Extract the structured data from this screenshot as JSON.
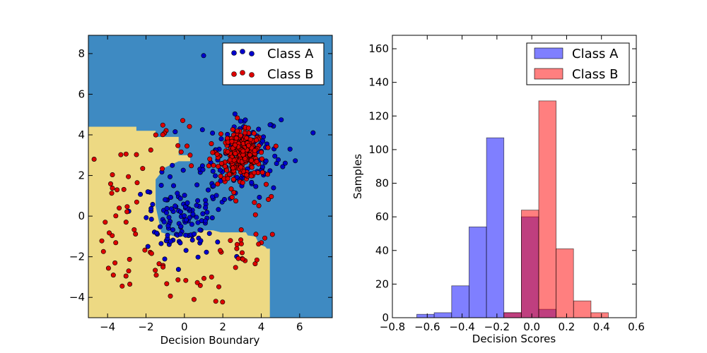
{
  "chart_data": [
    {
      "type": "scatter",
      "xlabel": "Decision Boundary",
      "ylabel": "",
      "xlim": [
        -5,
        7.7
      ],
      "ylim": [
        -5,
        8.9
      ],
      "xticks": [
        -4,
        -2,
        0,
        2,
        4,
        6
      ],
      "xtick_labels": [
        "−4",
        "−2",
        "0",
        "2",
        "4",
        "6"
      ],
      "yticks": [
        -4,
        -2,
        0,
        2,
        4,
        6,
        8
      ],
      "ytick_labels": [
        "−4",
        "−2",
        "0",
        "2",
        "4",
        "6",
        "8"
      ],
      "legend_position": "top-right",
      "background_colors": {
        "class_a_region": "#3E8AC2",
        "class_b_region": "#EDD983"
      },
      "decision_region_class_b": [
        [
          -5,
          4.4
        ],
        [
          -2.5,
          4.4
        ],
        [
          -2.5,
          4.2
        ],
        [
          -1.5,
          4.2
        ],
        [
          -1.5,
          3.9
        ],
        [
          -0.3,
          3.9
        ],
        [
          -0.3,
          3.0
        ],
        [
          0.3,
          3.0
        ],
        [
          0.3,
          2.7
        ],
        [
          -0.3,
          2.7
        ],
        [
          -1.0,
          2.4
        ],
        [
          -1.5,
          1.8
        ],
        [
          -1.5,
          0.5
        ],
        [
          -1.2,
          -0.8
        ],
        [
          -0.5,
          -1.0
        ],
        [
          0.5,
          -1.0
        ],
        [
          0.8,
          -0.7
        ],
        [
          1.5,
          -0.7
        ],
        [
          1.9,
          -0.8
        ],
        [
          3.2,
          -0.8
        ],
        [
          3.3,
          -0.95
        ],
        [
          3.7,
          -1.0
        ],
        [
          3.9,
          -1.4
        ],
        [
          4.2,
          -1.5
        ],
        [
          4.3,
          -1.6
        ],
        [
          4.45,
          -1.6
        ],
        [
          4.45,
          -5
        ],
        [
          -5,
          -5
        ]
      ],
      "decision_region_class_a_inner": [
        [
          1.2,
          4.2
        ],
        [
          4.0,
          4.2
        ],
        [
          4.2,
          3.4
        ],
        [
          4.2,
          1.9
        ],
        [
          3.8,
          1.3
        ],
        [
          3.3,
          0.6
        ],
        [
          2.7,
          0.2
        ],
        [
          2.2,
          0.2
        ],
        [
          1.6,
          0.6
        ],
        [
          1.6,
          1.9
        ],
        [
          1.5,
          2.9
        ],
        [
          1.2,
          3.6
        ]
      ],
      "series": [
        {
          "name": "Class A",
          "color": "#0000CC",
          "center": [
            0,
            0
          ],
          "center2": [
            3,
            3
          ],
          "spread": 1.0,
          "count": 250,
          "outliers": [
            [
              1.0,
              7.9
            ],
            [
              6.7,
              4.1
            ],
            [
              -1.9,
              1.2
            ],
            [
              5.5,
              3.3
            ]
          ]
        },
        {
          "name": "Class B",
          "color": "#DD0000",
          "center": [
            3,
            3
          ],
          "spread": 0.8,
          "count": 250,
          "ring_center": [
            0,
            0
          ],
          "ring_radius_range": [
            2.5,
            4.8
          ],
          "ring_count": 110,
          "outliers": [
            [
              -3.7,
              -2.9
            ],
            [
              -4.7,
              2.8
            ],
            [
              -2.9,
              -2.7
            ],
            [
              0.5,
              -4.1
            ]
          ]
        }
      ]
    },
    {
      "type": "histogram",
      "xlabel": "Decision Scores",
      "ylabel": "Samples",
      "xlim": [
        -0.8,
        0.6
      ],
      "ylim": [
        0,
        168
      ],
      "xticks": [
        -0.8,
        -0.6,
        -0.4,
        -0.2,
        0.0,
        0.2,
        0.4,
        0.6
      ],
      "xtick_labels": [
        "−0.8",
        "−0.6",
        "−0.4",
        "−0.2",
        "0.0",
        "0.2",
        "0.4",
        "0.6"
      ],
      "yticks": [
        0,
        20,
        40,
        60,
        80,
        100,
        120,
        140,
        160
      ],
      "ytick_labels": [
        "0",
        "20",
        "40",
        "60",
        "80",
        "100",
        "120",
        "140",
        "160"
      ],
      "legend_position": "top-right",
      "series": [
        {
          "name": "Class A",
          "color": "#0000FF",
          "opacity": 0.5,
          "bins": [
            [
              -0.66,
              -0.56,
              2
            ],
            [
              -0.56,
              -0.46,
              3
            ],
            [
              -0.46,
              -0.36,
              19
            ],
            [
              -0.36,
              -0.26,
              54
            ],
            [
              -0.26,
              -0.16,
              107
            ],
            [
              -0.16,
              -0.06,
              3
            ],
            [
              -0.06,
              0.04,
              60
            ],
            [
              0.04,
              0.14,
              5
            ]
          ]
        },
        {
          "name": "Class B",
          "color": "#FF0000",
          "opacity": 0.5,
          "bins": [
            [
              -0.16,
              -0.06,
              3
            ],
            [
              -0.06,
              0.04,
              64
            ],
            [
              0.04,
              0.14,
              129
            ],
            [
              0.14,
              0.24,
              41
            ],
            [
              0.24,
              0.34,
              10
            ],
            [
              0.34,
              0.44,
              3
            ]
          ]
        }
      ]
    }
  ]
}
